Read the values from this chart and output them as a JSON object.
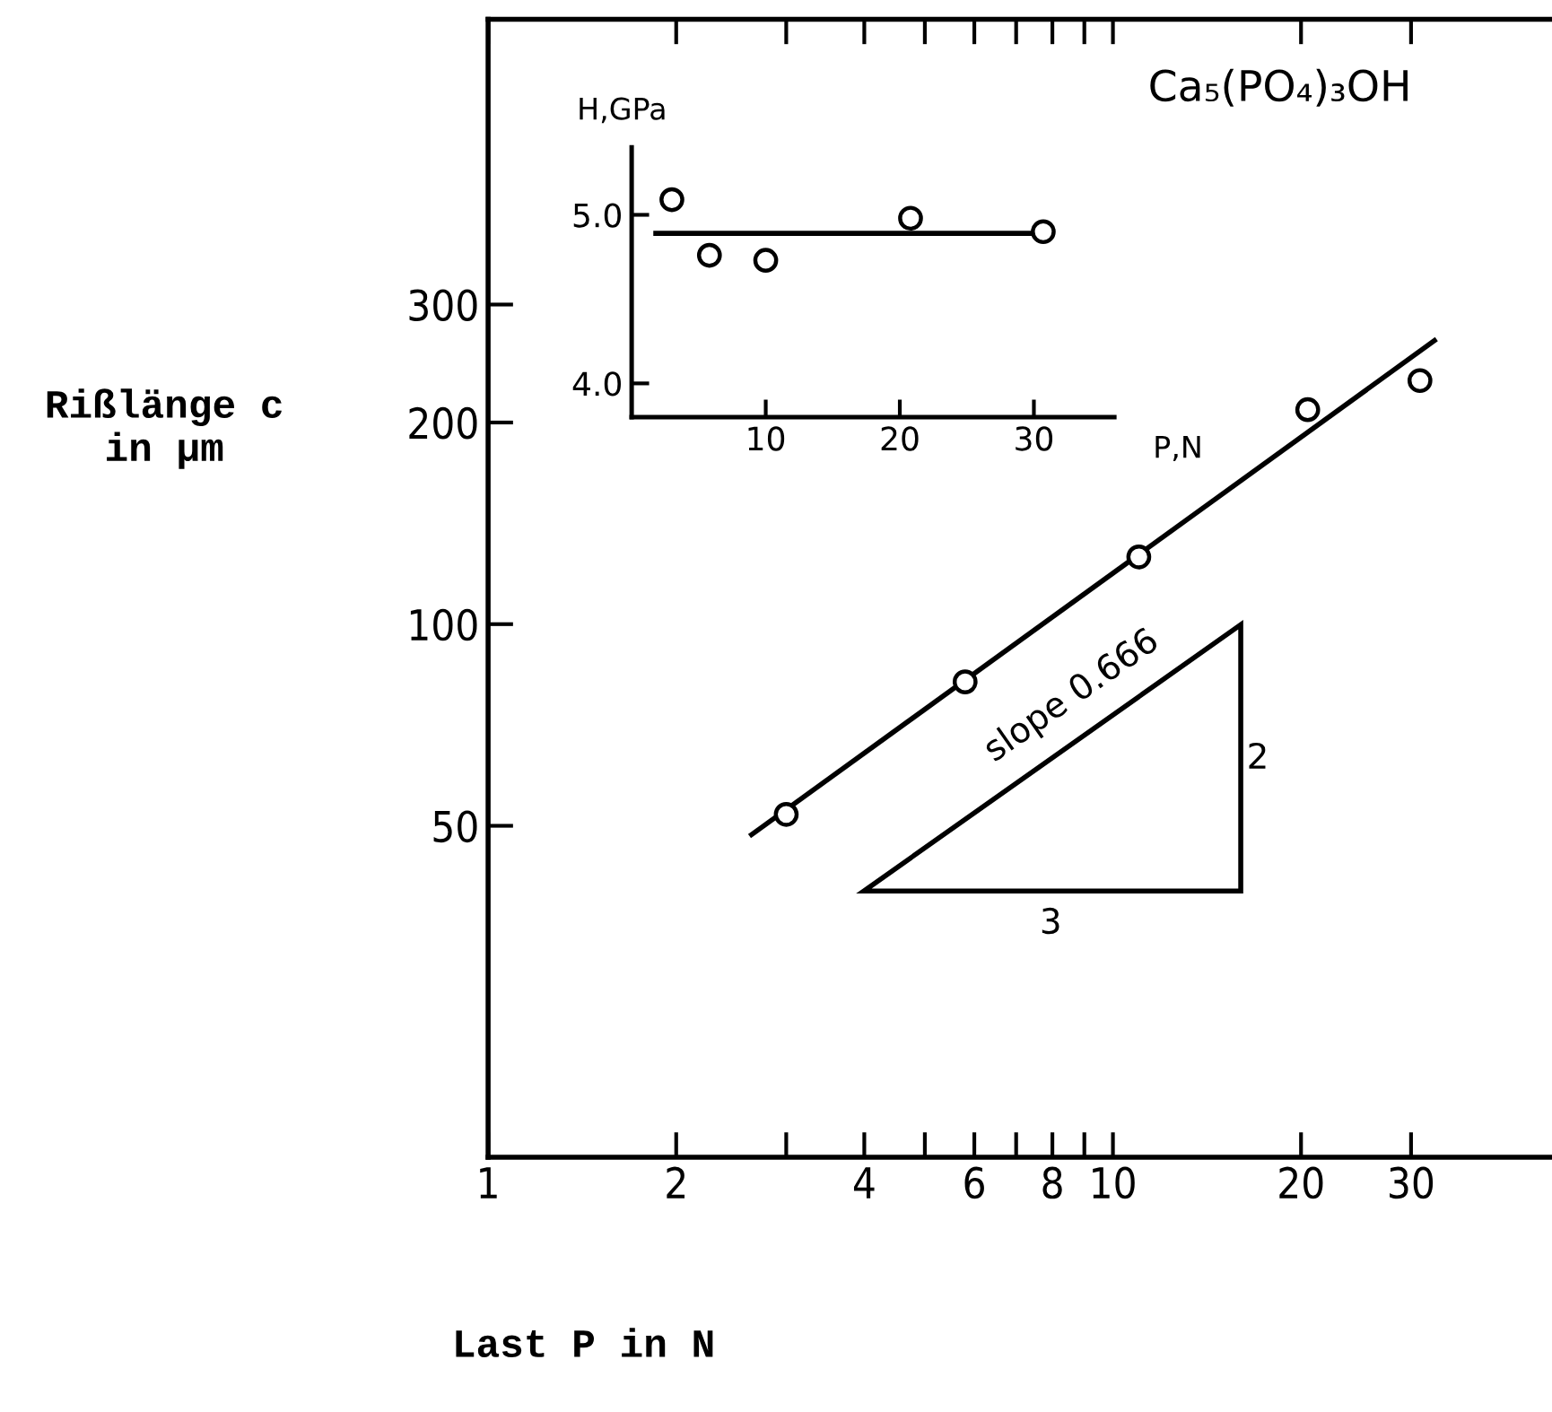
{
  "chart_data": [
    {
      "type": "scatter",
      "title": "Ca₅(PO₄)₃OH",
      "xlabel": "Last P in N",
      "ylabel": "Rißlänge c\nin μm",
      "log": "xy",
      "xlim": [
        1,
        50
      ],
      "ylim": [
        16,
        800
      ],
      "xticks": [
        1,
        2,
        {
          "value": 3,
          "label": null
        },
        4,
        {
          "value": 5,
          "label": null
        },
        6,
        {
          "value": 7,
          "label": null
        },
        8,
        {
          "value": 9,
          "label": null
        },
        10,
        20,
        30
      ],
      "yticks": [
        50,
        100,
        200,
        300
      ],
      "grid": false,
      "legend": false,
      "marker": "circle",
      "series": [
        {
          "type": "line",
          "color": "#000000",
          "x": [
            2.64,
            32.7
          ],
          "values": [
            48.5,
            265
          ],
          "marker": "none"
        },
        {
          "color": "#000000",
          "x": [
            3,
            5.8,
            11,
            20.5,
            31
          ],
          "values": [
            52,
            82,
            126,
            209,
            231
          ]
        }
      ],
      "annotations": [
        "slope 0.666",
        "2",
        "3"
      ]
    },
    {
      "type": "scatter",
      "xlabel": "P,N",
      "ylabel": "H,GPa",
      "xlim": [
        0,
        36
      ],
      "ylim": [
        3.8,
        5.4
      ],
      "xticks": [
        10,
        20,
        30
      ],
      "yticks": [
        {
          "value": 4.0,
          "label": "4.0"
        },
        {
          "value": 5.0,
          "label": "5.0"
        }
      ],
      "grid": false,
      "legend": false,
      "marker": "circle",
      "series": [
        {
          "type": "line",
          "color": "#000000",
          "x": [
            1.8,
            31
          ],
          "values": [
            4.89,
            4.89
          ],
          "marker": "none"
        },
        {
          "color": "#000000",
          "x": [
            3,
            5.8,
            10,
            20.8,
            30.7
          ],
          "values": [
            5.09,
            4.76,
            4.73,
            4.98,
            4.9
          ]
        }
      ]
    }
  ]
}
